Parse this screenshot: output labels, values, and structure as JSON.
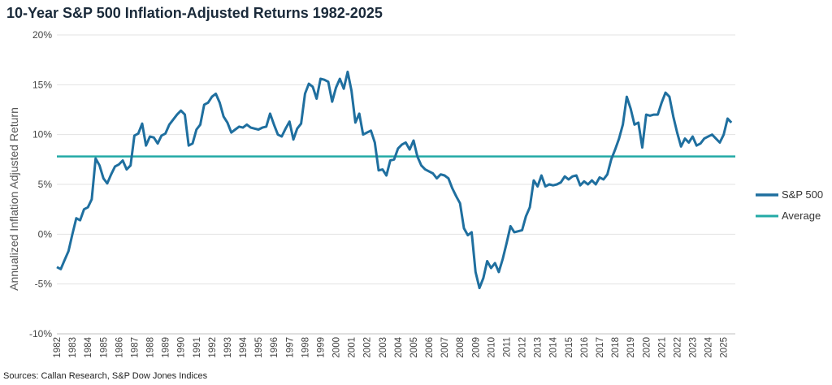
{
  "header": {
    "title": "10-Year S&P 500 Inflation-Adjusted Returns 1982-2025"
  },
  "footer": {
    "source": "Sources: Callan Research, S&P Dow Jones Indices"
  },
  "colors": {
    "series": "#1f6f9f",
    "average": "#23aaa6",
    "grid": "#e3e3e3"
  },
  "chart_data": {
    "type": "line",
    "title": "10-Year S&P 500 Inflation-Adjusted Returns 1982-2025",
    "ylabel": "Annualized Inflation Adjusted Return",
    "xlabel": "",
    "ylim": [
      -10,
      20
    ],
    "y_ticks": [
      "20%",
      "15%",
      "10%",
      "5%",
      "0%",
      "-5%",
      "-10%"
    ],
    "y_tick_values": [
      20,
      15,
      10,
      5,
      0,
      -5,
      -10
    ],
    "x_ticks": [
      "1982",
      "1983",
      "1984",
      "1985",
      "1986",
      "1987",
      "1988",
      "1989",
      "1990",
      "1991",
      "1992",
      "1993",
      "1994",
      "1995",
      "1996",
      "1997",
      "1998",
      "1999",
      "2000",
      "2001",
      "2002",
      "2003",
      "2004",
      "2005",
      "2006",
      "2007",
      "2008",
      "2009",
      "2010",
      "2011",
      "2012",
      "2013",
      "2014",
      "2015",
      "2016",
      "2017",
      "2018",
      "2019",
      "2020",
      "2021",
      "2022",
      "2023",
      "2024",
      "2025"
    ],
    "xlim": [
      1982,
      2025.75
    ],
    "grid": true,
    "legend": "right",
    "series": [
      {
        "name": "S&P 500",
        "x": [
          1982,
          1982.25,
          1982.5,
          1982.75,
          1983,
          1983.25,
          1983.5,
          1983.75,
          1984,
          1984.25,
          1984.5,
          1984.75,
          1985,
          1985.25,
          1985.5,
          1985.75,
          1986,
          1986.25,
          1986.5,
          1986.75,
          1987,
          1987.25,
          1987.5,
          1987.75,
          1988,
          1988.25,
          1988.5,
          1988.75,
          1989,
          1989.25,
          1989.5,
          1989.75,
          1990,
          1990.25,
          1990.5,
          1990.75,
          1991,
          1991.25,
          1991.5,
          1991.75,
          1992,
          1992.25,
          1992.5,
          1992.75,
          1993,
          1993.25,
          1993.5,
          1993.75,
          1994,
          1994.25,
          1994.5,
          1994.75,
          1995,
          1995.25,
          1995.5,
          1995.75,
          1996,
          1996.25,
          1996.5,
          1996.75,
          1997,
          1997.25,
          1997.5,
          1997.75,
          1998,
          1998.25,
          1998.5,
          1998.75,
          1999,
          1999.25,
          1999.5,
          1999.75,
          2000,
          2000.25,
          2000.5,
          2000.75,
          2001,
          2001.25,
          2001.5,
          2001.75,
          2002,
          2002.25,
          2002.5,
          2002.75,
          2003,
          2003.25,
          2003.5,
          2003.75,
          2004,
          2004.25,
          2004.5,
          2004.75,
          2005,
          2005.25,
          2005.5,
          2005.75,
          2006,
          2006.25,
          2006.5,
          2006.75,
          2007,
          2007.25,
          2007.5,
          2007.75,
          2008,
          2008.25,
          2008.5,
          2008.75,
          2009,
          2009.25,
          2009.5,
          2009.75,
          2010,
          2010.25,
          2010.5,
          2010.75,
          2011,
          2011.25,
          2011.5,
          2011.75,
          2012,
          2012.25,
          2012.5,
          2012.75,
          2013,
          2013.25,
          2013.5,
          2013.75,
          2014,
          2014.25,
          2014.5,
          2014.75,
          2015,
          2015.25,
          2015.5,
          2015.75,
          2016,
          2016.25,
          2016.5,
          2016.75,
          2017,
          2017.25,
          2017.5,
          2017.75,
          2018,
          2018.25,
          2018.5,
          2018.75,
          2019,
          2019.25,
          2019.5,
          2019.75,
          2020,
          2020.25,
          2020.5,
          2020.75,
          2021,
          2021.25,
          2021.5,
          2021.75,
          2022,
          2022.25,
          2022.5,
          2022.75,
          2023,
          2023.25,
          2023.5,
          2023.75,
          2024,
          2024.25,
          2024.5,
          2024.75,
          2025,
          2025.25,
          2025.5
        ],
        "values": [
          -3.3,
          -3.5,
          -2.6,
          -1.7,
          0.0,
          1.6,
          1.4,
          2.5,
          2.7,
          3.5,
          7.6,
          6.9,
          5.6,
          5.1,
          6.0,
          6.8,
          7.0,
          7.4,
          6.5,
          6.9,
          9.9,
          10.1,
          11.1,
          8.9,
          9.8,
          9.7,
          9.1,
          9.9,
          10.1,
          11.0,
          11.5,
          12.0,
          12.4,
          12.0,
          8.9,
          9.1,
          10.5,
          11.0,
          13.0,
          13.2,
          13.8,
          14.1,
          13.2,
          11.8,
          11.2,
          10.2,
          10.5,
          10.8,
          10.7,
          11.0,
          10.7,
          10.6,
          10.5,
          10.7,
          10.8,
          12.1,
          11.0,
          10.0,
          9.8,
          10.6,
          11.3,
          9.5,
          10.6,
          11.1,
          14.1,
          15.1,
          14.8,
          13.6,
          15.6,
          15.5,
          15.3,
          13.3,
          14.7,
          15.6,
          14.6,
          16.3,
          14.4,
          11.2,
          12.1,
          10.0,
          10.2,
          10.4,
          9.2,
          6.4,
          6.5,
          5.9,
          7.4,
          7.5,
          8.6,
          9.0,
          9.2,
          8.5,
          9.4,
          7.8,
          6.9,
          6.5,
          6.3,
          6.1,
          5.6,
          6.0,
          5.9,
          5.6,
          4.6,
          3.8,
          3.1,
          0.6,
          -0.1,
          0.2,
          -3.8,
          -5.4,
          -4.4,
          -2.7,
          -3.4,
          -2.9,
          -3.8,
          -2.5,
          -0.9,
          0.8,
          0.2,
          0.3,
          0.4,
          1.8,
          2.7,
          5.4,
          4.8,
          5.9,
          4.8,
          5.0,
          4.9,
          5.0,
          5.2,
          5.8,
          5.5,
          5.8,
          5.9,
          4.9,
          5.3,
          5.0,
          5.4,
          5.0,
          5.7,
          5.5,
          6.0,
          7.5,
          8.5,
          9.6,
          11.0,
          13.8,
          12.6,
          11.0,
          11.2,
          8.7,
          12.0,
          11.9,
          12.0,
          12.0,
          13.2,
          14.2,
          13.8,
          11.8,
          10.2,
          8.8,
          9.6,
          9.2,
          9.8,
          8.9,
          9.1,
          9.6,
          9.8,
          10.0,
          9.6,
          9.2,
          10.0,
          11.6,
          11.2
        ]
      },
      {
        "name": "Average",
        "x": [
          1982,
          2025.75
        ],
        "values": [
          7.8,
          7.8
        ]
      }
    ]
  }
}
